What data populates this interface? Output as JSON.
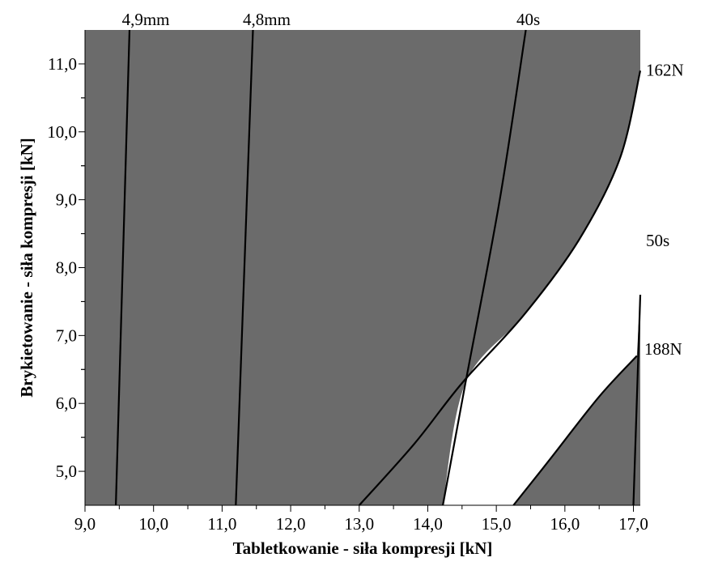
{
  "chart_data": {
    "type": "contour",
    "xlabel": "Tabletkowanie - siła kompresji [kN]",
    "ylabel": "Brykietowanie - siła kompresji [kN]",
    "xlim": [
      9.0,
      17.1
    ],
    "ylim": [
      4.5,
      11.5
    ],
    "x_ticks": [
      "9,0",
      "10,0",
      "11,0",
      "12,0",
      "13,0",
      "14,0",
      "15,0",
      "16,0",
      "17,0"
    ],
    "y_ticks": [
      "5,0",
      "6,0",
      "7,0",
      "8,0",
      "9,0",
      "10,0",
      "11,0"
    ],
    "background_color": "#6b6b6b",
    "design_space_color": "#ffffff",
    "contours": [
      {
        "label": "4,9mm",
        "points": [
          [
            9.45,
            4.5
          ],
          [
            9.65,
            11.5
          ]
        ]
      },
      {
        "label": "4,8mm",
        "points": [
          [
            11.2,
            4.5
          ],
          [
            11.45,
            11.5
          ]
        ]
      },
      {
        "label": "40s",
        "points": [
          [
            14.22,
            4.5
          ],
          [
            14.55,
            6.3
          ],
          [
            15.05,
            9.0
          ],
          [
            15.43,
            11.5
          ]
        ]
      },
      {
        "label": "50s",
        "points": [
          [
            17.1,
            7.6
          ],
          [
            17.1,
            7.6
          ]
        ]
      },
      {
        "label": "162N",
        "points": [
          [
            13.0,
            4.5
          ],
          [
            13.8,
            5.4
          ],
          [
            14.5,
            6.3
          ],
          [
            15.4,
            7.3
          ],
          [
            16.2,
            8.4
          ],
          [
            16.8,
            9.6
          ],
          [
            17.1,
            10.9
          ]
        ]
      },
      {
        "label": "188N",
        "points": [
          [
            15.25,
            4.5
          ],
          [
            15.8,
            5.2
          ],
          [
            16.5,
            6.1
          ],
          [
            17.05,
            6.7
          ]
        ]
      },
      {
        "label": "",
        "points": [
          [
            17.0,
            4.5
          ],
          [
            17.1,
            7.6
          ]
        ]
      }
    ],
    "sweet_spot": {
      "lower_bound": [
        [
          14.22,
          4.5
        ],
        [
          14.55,
          6.3
        ]
      ],
      "upper_bound": [
        [
          14.55,
          6.3
        ],
        [
          15.4,
          7.3
        ],
        [
          16.2,
          8.4
        ],
        [
          16.8,
          9.6
        ],
        [
          17.1,
          10.9
        ]
      ],
      "right_bound_x": 17.1,
      "cutout": [
        [
          15.25,
          4.5
        ],
        [
          15.8,
          5.2
        ],
        [
          16.5,
          6.1
        ],
        [
          17.05,
          6.7
        ],
        [
          17.1,
          4.5
        ]
      ]
    }
  }
}
